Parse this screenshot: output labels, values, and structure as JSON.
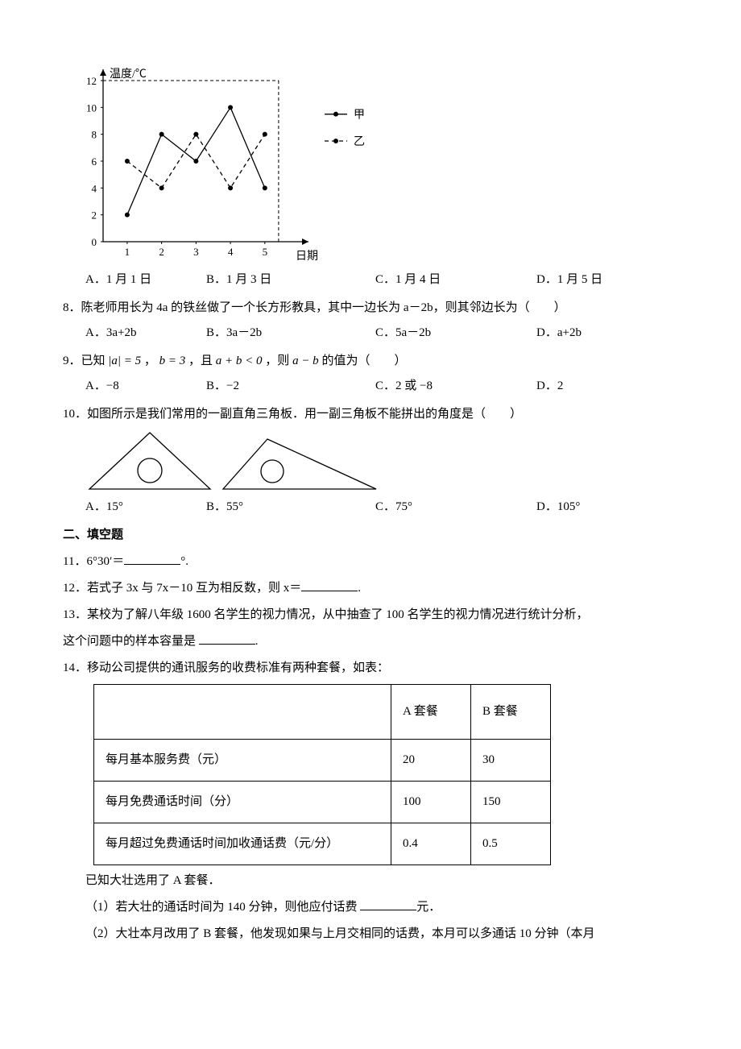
{
  "chart": {
    "type": "line",
    "y_axis_label": "温度/℃",
    "x_axis_label": "日期",
    "xlim": [
      0.3,
      5.8
    ],
    "ylim": [
      0,
      12
    ],
    "xticks": [
      1,
      2,
      3,
      4,
      5
    ],
    "yticks": [
      0,
      2,
      4,
      6,
      8,
      10,
      12
    ],
    "grid_color": "#000000",
    "background_color": "#ffffff",
    "legend": [
      {
        "label": "甲",
        "style": "solid"
      },
      {
        "label": "乙",
        "style": "dashed"
      }
    ],
    "series": [
      {
        "name": "甲",
        "style": "solid",
        "color": "#000000",
        "marker": "dot",
        "points": [
          [
            1,
            2
          ],
          [
            2,
            8
          ],
          [
            3,
            6
          ],
          [
            4,
            10
          ],
          [
            5,
            4
          ]
        ]
      },
      {
        "name": "乙",
        "style": "dashed",
        "color": "#000000",
        "marker": "dot",
        "points": [
          [
            1,
            6
          ],
          [
            2,
            4
          ],
          [
            3,
            8
          ],
          [
            4,
            4
          ],
          [
            5,
            8
          ]
        ]
      }
    ],
    "ref_lines": [
      {
        "orientation": "vertical",
        "at": 5.4,
        "style": "dashed"
      },
      {
        "orientation": "horizontal",
        "at": 12,
        "from": 0,
        "to": 5.4,
        "style": "dashed"
      }
    ]
  },
  "q7_options": {
    "A": "A．1 月 1 日",
    "B": "B．1 月 3 日",
    "C": "C．1 月 4 日",
    "D": "D．1 月 5 日"
  },
  "q8": {
    "text": "8．陈老师用长为 4a 的铁丝做了一个长方形教具，其中一边长为 a－2b，则其邻边长为（　　）",
    "options": {
      "A": "A．3a+2b",
      "B": "B．3a－2b",
      "C": "C．5a－2b",
      "D": "D．a+2b"
    }
  },
  "q9": {
    "prefix": "9．已知",
    "abs": "|a| = 5",
    "mid1": "，",
    "b": "b = 3",
    "mid2": "，且",
    "cond": "a + b < 0",
    "mid3": "，则",
    "expr": "a − b",
    "suffix": "的值为（　　）",
    "options": {
      "A": "A．−8",
      "B": "B．−2",
      "C": "C．2 或 −8",
      "D": "D．2"
    }
  },
  "q10": {
    "text": "10．如图所示是我们常用的一副直角三角板．用一副三角板不能拼出的角度是（　　）",
    "options": {
      "A": "A．15°",
      "B": "B．55°",
      "C": "C．75°",
      "D": "D．105°"
    }
  },
  "section2_title": "二、填空题",
  "q11": {
    "prefix": "11．6°30′＝",
    "suffix": "°."
  },
  "q12": {
    "prefix": "12．若式子 3x 与 7x－10 互为相反数，则 x＝",
    "suffix": "."
  },
  "q13": {
    "line1": "13．某校为了解八年级 1600 名学生的视力情况，从中抽查了 100 名学生的视力情况进行统计分析，",
    "line2_prefix": "这个问题中的样本容量是 ",
    "line2_suffix": "."
  },
  "q14": {
    "intro": "14．移动公司提供的通讯服务的收费标准有两种套餐，如表：",
    "table": {
      "headers": [
        "",
        "A 套餐",
        "B 套餐"
      ],
      "rows": [
        [
          "每月基本服务费（元）",
          "20",
          "30"
        ],
        [
          "每月免费通话时间（分）",
          "100",
          "150"
        ],
        [
          "每月超过免费通话时间加收通话费（元/分）",
          "0.4",
          "0.5"
        ]
      ]
    },
    "known": "已知大壮选用了 A 套餐．",
    "part1_prefix": "（1）若大壮的通话时间为 140 分钟，则他应付话费 ",
    "part1_suffix": "元．",
    "part2": "（2）大壮本月改用了 B 套餐，他发现如果与上月交相同的话费，本月可以多通话 10 分钟（本月"
  }
}
